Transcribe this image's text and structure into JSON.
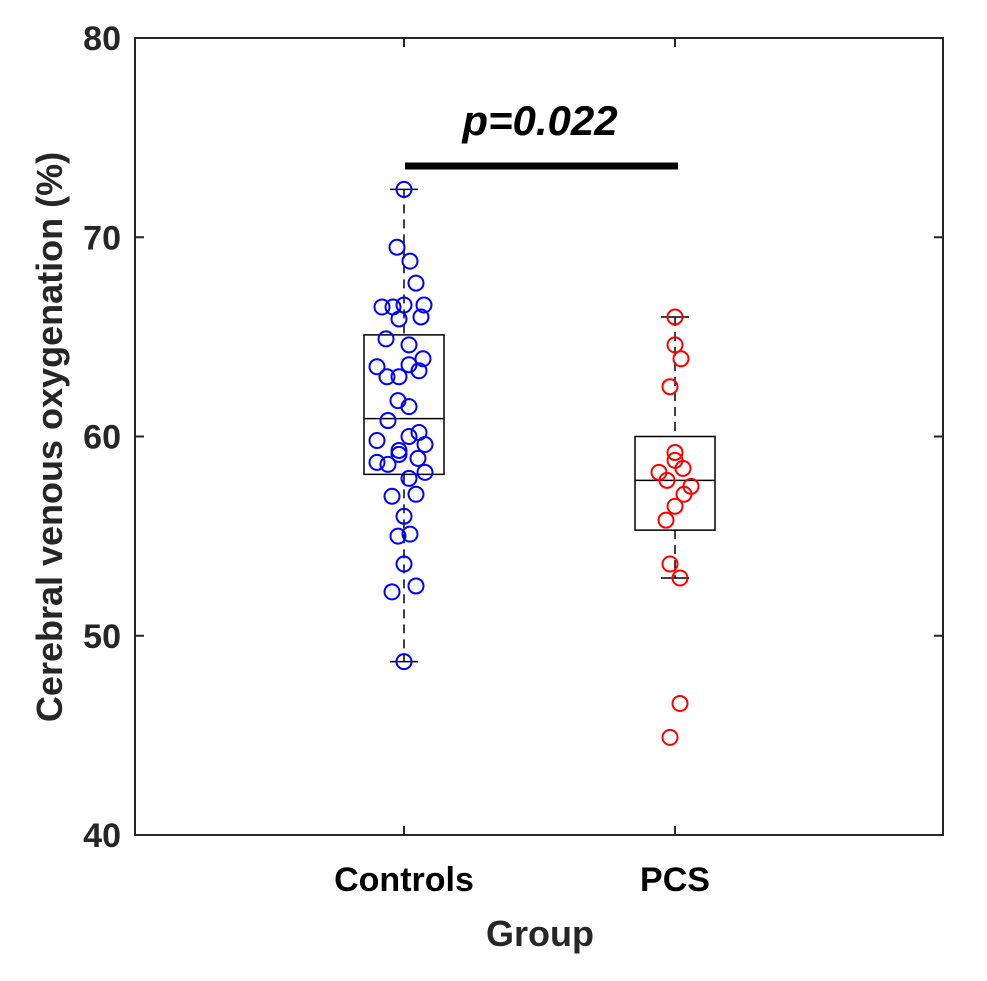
{
  "chart_data": {
    "type": "box",
    "title": "",
    "xlabel": "Group",
    "ylabel": "Cerebral venous oxygenation (%)",
    "ylim": [
      40,
      80
    ],
    "yticks": [
      40,
      50,
      60,
      70,
      80
    ],
    "categories": [
      "Controls",
      "PCS"
    ],
    "annotation": "p=0.022",
    "series": [
      {
        "name": "Controls",
        "color": "#0000ff",
        "box": {
          "whisker_low": 48.7,
          "q1": 58.1,
          "median": 60.9,
          "q3": 65.1,
          "whisker_high": 72.4
        },
        "points": [
          {
            "offset": 0.0,
            "value": 72.4
          },
          {
            "offset": -0.07,
            "value": 69.5
          },
          {
            "offset": 0.06,
            "value": 68.8
          },
          {
            "offset": 0.12,
            "value": 67.7
          },
          {
            "offset": -0.22,
            "value": 66.5
          },
          {
            "offset": -0.11,
            "value": 66.5
          },
          {
            "offset": 0.0,
            "value": 66.6
          },
          {
            "offset": 0.2,
            "value": 66.6
          },
          {
            "offset": -0.05,
            "value": 65.9
          },
          {
            "offset": 0.17,
            "value": 66.0
          },
          {
            "offset": -0.18,
            "value": 64.9
          },
          {
            "offset": 0.05,
            "value": 64.6
          },
          {
            "offset": 0.19,
            "value": 63.9
          },
          {
            "offset": -0.27,
            "value": 63.5
          },
          {
            "offset": 0.05,
            "value": 63.6
          },
          {
            "offset": 0.15,
            "value": 63.3
          },
          {
            "offset": -0.17,
            "value": 63.0
          },
          {
            "offset": -0.05,
            "value": 63.0
          },
          {
            "offset": -0.06,
            "value": 61.8
          },
          {
            "offset": 0.05,
            "value": 61.5
          },
          {
            "offset": -0.16,
            "value": 60.8
          },
          {
            "offset": -0.27,
            "value": 59.8
          },
          {
            "offset": 0.05,
            "value": 60.0
          },
          {
            "offset": 0.15,
            "value": 60.2
          },
          {
            "offset": 0.21,
            "value": 59.6
          },
          {
            "offset": -0.05,
            "value": 59.3
          },
          {
            "offset": -0.05,
            "value": 59.1
          },
          {
            "offset": 0.14,
            "value": 58.9
          },
          {
            "offset": -0.27,
            "value": 58.7
          },
          {
            "offset": -0.16,
            "value": 58.6
          },
          {
            "offset": 0.21,
            "value": 58.2
          },
          {
            "offset": 0.05,
            "value": 57.9
          },
          {
            "offset": -0.12,
            "value": 57.0
          },
          {
            "offset": 0.12,
            "value": 57.1
          },
          {
            "offset": 0.0,
            "value": 56.0
          },
          {
            "offset": -0.06,
            "value": 55.0
          },
          {
            "offset": 0.06,
            "value": 55.1
          },
          {
            "offset": 0.0,
            "value": 53.6
          },
          {
            "offset": -0.12,
            "value": 52.2
          },
          {
            "offset": 0.12,
            "value": 52.5
          },
          {
            "offset": 0.0,
            "value": 48.7
          }
        ]
      },
      {
        "name": "PCS",
        "color": "#ff0000",
        "box": {
          "whisker_low": 52.9,
          "q1": 55.3,
          "median": 57.8,
          "q3": 60.0,
          "whisker_high": 66.0
        },
        "points": [
          {
            "offset": 0.0,
            "value": 66.0
          },
          {
            "offset": 0.0,
            "value": 64.6
          },
          {
            "offset": 0.06,
            "value": 63.9
          },
          {
            "offset": -0.05,
            "value": 62.5
          },
          {
            "offset": 0.0,
            "value": 59.2
          },
          {
            "offset": 0.0,
            "value": 58.8
          },
          {
            "offset": 0.08,
            "value": 58.4
          },
          {
            "offset": -0.16,
            "value": 58.2
          },
          {
            "offset": -0.08,
            "value": 57.8
          },
          {
            "offset": 0.16,
            "value": 57.5
          },
          {
            "offset": 0.09,
            "value": 57.1
          },
          {
            "offset": 0.0,
            "value": 56.5
          },
          {
            "offset": -0.09,
            "value": 55.8
          },
          {
            "offset": -0.05,
            "value": 53.6
          },
          {
            "offset": 0.05,
            "value": 52.9
          },
          {
            "offset": 0.05,
            "value": 46.6
          },
          {
            "offset": -0.05,
            "value": 44.9
          }
        ]
      }
    ]
  }
}
